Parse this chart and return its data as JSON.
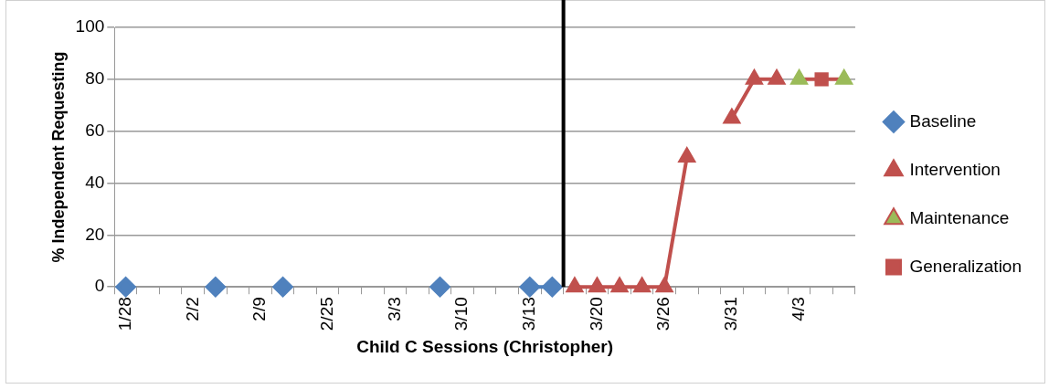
{
  "chart_data": {
    "type": "line",
    "xlabel": "Child C Sessions (Christopher)",
    "ylabel": "% Independent Requesting",
    "categories": [
      "1/28",
      null,
      null,
      "2/2",
      null,
      null,
      "2/9",
      null,
      null,
      "2/25",
      null,
      null,
      "3/3",
      null,
      null,
      "3/10",
      null,
      null,
      "3/13",
      null,
      null,
      "3/20",
      null,
      null,
      "3/26",
      null,
      null,
      "3/31",
      null,
      null,
      "4/3",
      null,
      null
    ],
    "series": [
      {
        "name": "Baseline",
        "color": "#4f81bd",
        "marker": "diamond",
        "values": [
          0,
          null,
          null,
          null,
          0,
          null,
          null,
          0,
          null,
          null,
          null,
          null,
          null,
          null,
          0,
          null,
          null,
          null,
          0,
          0,
          null,
          null,
          null,
          null,
          null,
          null,
          null,
          null,
          null,
          null,
          null,
          null,
          null
        ]
      },
      {
        "name": "Intervention",
        "color": "#c0504d",
        "marker": "triangle",
        "values": [
          null,
          null,
          null,
          null,
          null,
          null,
          null,
          null,
          null,
          null,
          null,
          null,
          null,
          null,
          null,
          null,
          null,
          null,
          null,
          null,
          0,
          0,
          0,
          0,
          0,
          50,
          null,
          65,
          80,
          80,
          null,
          null,
          null
        ]
      },
      {
        "name": "Maintenance",
        "color": "#c0504d",
        "colors": [
          null,
          null,
          null,
          null,
          null,
          null,
          null,
          null,
          null,
          null,
          null,
          null,
          null,
          null,
          null,
          null,
          null,
          null,
          null,
          null,
          null,
          null,
          null,
          null,
          null,
          null,
          null,
          null,
          null,
          null,
          "#9bbb59",
          null,
          "#9bbb59"
        ],
        "marker": "triangle",
        "values": [
          null,
          null,
          null,
          null,
          null,
          null,
          null,
          null,
          null,
          null,
          null,
          null,
          null,
          null,
          null,
          null,
          null,
          null,
          null,
          null,
          null,
          null,
          null,
          null,
          null,
          null,
          null,
          null,
          null,
          null,
          80,
          null,
          80
        ]
      },
      {
        "name": "Generalization",
        "color": "#c0504d",
        "colors": [
          null,
          null,
          null,
          null,
          null,
          null,
          null,
          null,
          null,
          null,
          null,
          null,
          null,
          null,
          null,
          null,
          null,
          null,
          null,
          null,
          null,
          null,
          null,
          null,
          null,
          null,
          null,
          null,
          null,
          null,
          null,
          "#c0504d",
          null
        ],
        "marker": "square",
        "values": [
          null,
          null,
          null,
          null,
          null,
          null,
          null,
          null,
          null,
          null,
          null,
          null,
          null,
          null,
          null,
          null,
          null,
          null,
          null,
          null,
          null,
          null,
          null,
          null,
          null,
          null,
          null,
          null,
          null,
          null,
          null,
          80,
          null
        ]
      }
    ],
    "ylim": [
      0,
      100
    ],
    "yticks": [
      0,
      20,
      40,
      60,
      80,
      100
    ],
    "grid": "y",
    "legend": "right"
  }
}
